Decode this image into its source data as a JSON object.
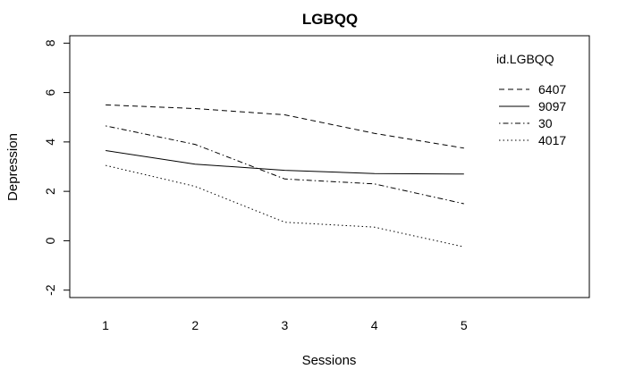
{
  "chart_data": {
    "type": "line",
    "title": "LGBQQ",
    "xlabel": "Sessions",
    "ylabel": "Depression",
    "x": [
      1,
      2,
      3,
      4,
      5
    ],
    "xlim": [
      0.6,
      6.4
    ],
    "ylim": [
      -2.3,
      8.3
    ],
    "xticks": [
      "1",
      "2",
      "3",
      "4",
      "5"
    ],
    "yticks": [
      "-2",
      "0",
      "2",
      "4",
      "6",
      "8"
    ],
    "grid": false,
    "legend": {
      "title": "id.LGBQQ",
      "placement": "top-right"
    },
    "series": [
      {
        "name": "6407",
        "dash": "dashed",
        "values": [
          5.5,
          5.35,
          5.1,
          4.35,
          3.75
        ]
      },
      {
        "name": "9097",
        "dash": "solid",
        "values": [
          3.65,
          3.1,
          2.85,
          2.72,
          2.7
        ]
      },
      {
        "name": "30",
        "dash": "dotdash",
        "values": [
          4.65,
          3.9,
          2.5,
          2.3,
          1.5
        ]
      },
      {
        "name": "4017",
        "dash": "dotted",
        "values": [
          3.05,
          2.2,
          0.75,
          0.55,
          -0.25
        ]
      }
    ]
  }
}
